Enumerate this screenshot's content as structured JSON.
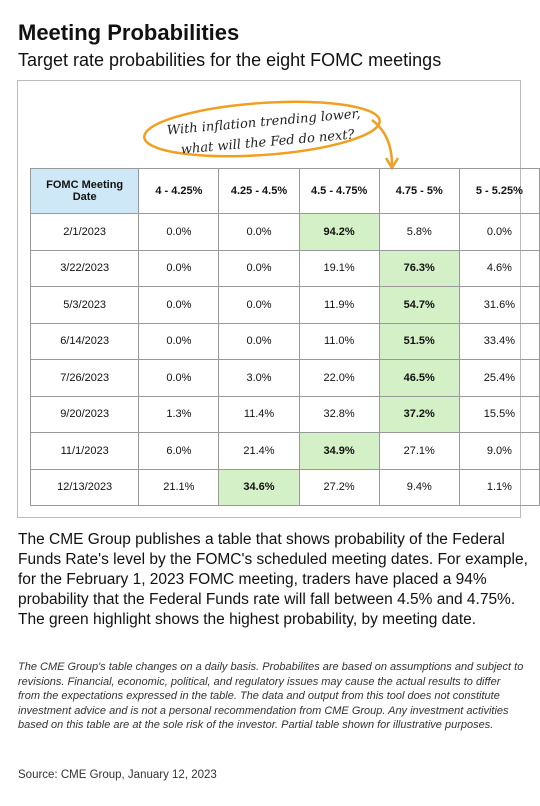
{
  "header": {
    "title": "Meeting Probabilities",
    "subtitle": "Target rate probabilities for the eight FOMC meetings"
  },
  "callout": {
    "lines": [
      "With inflation trending lower,",
      "what will the Fed do next?"
    ]
  },
  "table": {
    "columns": [
      "FOMC Meeting Date",
      "4 - 4.25%",
      "4.25 - 4.5%",
      "4.5 - 4.75%",
      "4.75 - 5%",
      "5 - 5.25%"
    ],
    "rows": [
      [
        "2/1/2023",
        "0.0%",
        "0.0%",
        "94.2%",
        "5.8%",
        "0.0%"
      ],
      [
        "3/22/2023",
        "0.0%",
        "0.0%",
        "19.1%",
        "76.3%",
        "4.6%"
      ],
      [
        "5/3/2023",
        "0.0%",
        "0.0%",
        "11.9%",
        "54.7%",
        "31.6%"
      ],
      [
        "6/14/2023",
        "0.0%",
        "0.0%",
        "11.0%",
        "51.5%",
        "33.4%"
      ],
      [
        "7/26/2023",
        "0.0%",
        "3.0%",
        "22.0%",
        "46.5%",
        "25.4%"
      ],
      [
        "9/20/2023",
        "1.3%",
        "11.4%",
        "32.8%",
        "37.2%",
        "15.5%"
      ],
      [
        "11/1/2023",
        "6.0%",
        "21.4%",
        "34.9%",
        "27.1%",
        "9.0%"
      ],
      [
        "12/13/2023",
        "21.1%",
        "34.6%",
        "27.2%",
        "9.4%",
        "1.1%"
      ]
    ]
  },
  "body": {
    "text": "The CME Group publishes a table that shows probability of the Federal Funds Rate's level by the FOMC's scheduled meeting dates. For example, for the February 1, 2023 FOMC meeting, traders have placed a 94% probability that the Federal Funds rate will fall between 4.5% and 4.75%. The green highlight shows the highest probability, by meeting date."
  },
  "disclaimer": {
    "text": "The CME Group's table changes on a daily basis. Probabilites are based on assumptions and subject to revisions. Financial, economic, political, and regulatory issues may cause the actual results to differ from the expectations expressed in the table. The data and output from this tool does not constitute investment advice and is not a personal recommendation from CME Group.  Any investment activities based on this table are at the sole risk of the investor. Partial table shown for illustrative purposes."
  },
  "footer": {
    "source": "Source: CME Group, January 12, 2023"
  }
}
